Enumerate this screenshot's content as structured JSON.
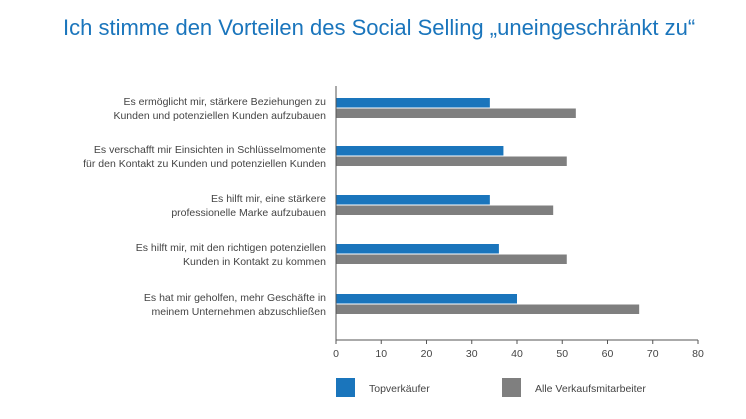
{
  "title": "Ich stimme den Vorteilen des Social Selling „uneingeschränkt zu“",
  "chart_data": {
    "type": "bar",
    "orientation": "horizontal",
    "title": "Ich stimme den Vorteilen des Social Selling „uneingeschränkt zu“",
    "categories": [
      [
        "Es ermöglicht mir, stärkere Beziehungen zu",
        "Kunden und potenziellen Kunden aufzubauen"
      ],
      [
        "Es verschafft mir Einsichten in Schlüsselmomente",
        "für den Kontakt zu Kunden und potenziellen Kunden"
      ],
      [
        "Es hilft mir, eine stärkere",
        "professionelle Marke aufzubauen"
      ],
      [
        "Es hilft mir, mit den richtigen potenziellen",
        "Kunden in Kontakt zu kommen"
      ],
      [
        "Es hat mir geholfen, mehr Geschäfte in",
        "meinem Unternehmen abzuschließen"
      ]
    ],
    "series": [
      {
        "name": "Topverkäufer",
        "color": "#1a75bc",
        "values": [
          34,
          37,
          34,
          36,
          40
        ]
      },
      {
        "name": "Alle Verkaufsmitarbeiter",
        "color": "#7f7f7f",
        "values": [
          53,
          51,
          48,
          51,
          67
        ]
      }
    ],
    "xlim": [
      0,
      80
    ],
    "xticks": [
      0,
      10,
      20,
      30,
      40,
      50,
      60,
      70,
      80
    ],
    "grid": false,
    "legend_position": "bottom"
  }
}
